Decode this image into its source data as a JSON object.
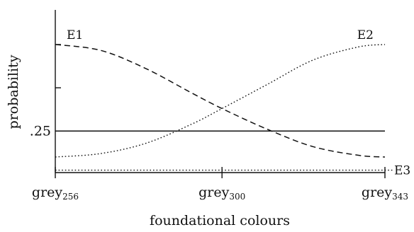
{
  "chart_data": {
    "type": "line",
    "xlabel": "foundational colours",
    "ylabel": "probability",
    "x_ticks": [
      {
        "x": 256,
        "base": "grey",
        "sub": "256"
      },
      {
        "x": 300,
        "base": "grey",
        "sub": "300"
      },
      {
        "x": 343,
        "base": "grey",
        "sub": "343"
      }
    ],
    "xlim": [
      256,
      343
    ],
    "ylim": [
      0.13,
      0.6
    ],
    "y_ticks": [
      {
        "y": 0.25,
        "label": ".25"
      },
      {
        "y": 0.375,
        "label": ""
      },
      {
        "y": 0.5,
        "label": ""
      }
    ],
    "series": [
      {
        "name": "E1",
        "style": "dashed",
        "x": [
          256,
          268,
          280,
          292,
          300,
          312,
          324,
          336,
          343
        ],
        "y": [
          0.5,
          0.483,
          0.43,
          0.36,
          0.315,
          0.255,
          0.205,
          0.18,
          0.175
        ]
      },
      {
        "name": "E2",
        "style": "dotted",
        "x": [
          256,
          268,
          280,
          292,
          300,
          312,
          324,
          336,
          343
        ],
        "y": [
          0.175,
          0.185,
          0.215,
          0.27,
          0.315,
          0.385,
          0.455,
          0.493,
          0.5
        ]
      },
      {
        "name": "",
        "style": "solid",
        "x": [
          256,
          343
        ],
        "y": [
          0.25,
          0.25
        ]
      },
      {
        "name": "E3",
        "style": "dotted",
        "x": [
          256,
          343
        ],
        "y": [
          0.137,
          0.137
        ]
      }
    ]
  }
}
